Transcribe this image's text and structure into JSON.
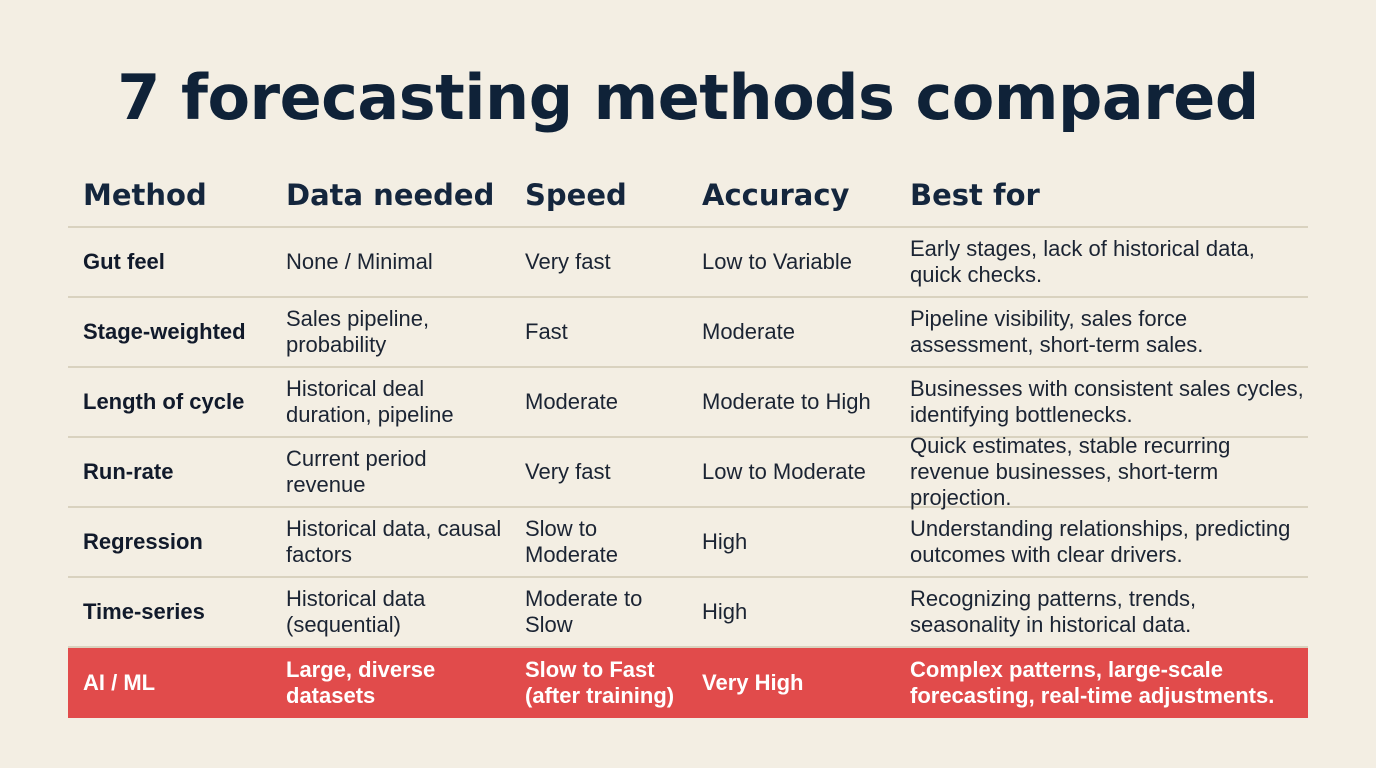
{
  "title": "7 forecasting methods compared",
  "columns": [
    "Method",
    "Data needed",
    "Speed",
    "Accuracy",
    "Best for"
  ],
  "rows": [
    {
      "method": "Gut feel",
      "data_needed": "None / Minimal",
      "speed": "Very fast",
      "accuracy": "Low to Variable",
      "best_for": "Early stages, lack of historical data, quick checks."
    },
    {
      "method": "Stage-weighted",
      "data_needed": "Sales pipeline, probability",
      "speed": "Fast",
      "accuracy": "Moderate",
      "best_for": "Pipeline visibility, sales force assessment, short-term sales."
    },
    {
      "method": "Length of cycle",
      "data_needed": "Historical deal duration, pipeline",
      "speed": "Moderate",
      "accuracy": "Moderate to High",
      "best_for": "Businesses with consistent sales cycles, identifying bottlenecks."
    },
    {
      "method": "Run-rate",
      "data_needed": "Current period revenue",
      "speed": "Very fast",
      "accuracy": "Low to Moderate",
      "best_for": "Quick estimates, stable recurring revenue businesses, short-term projection."
    },
    {
      "method": "Regression",
      "data_needed": "Historical data, causal factors",
      "speed": "Slow to Moderate",
      "accuracy": "High",
      "best_for": "Understanding relationships, predicting outcomes with clear drivers."
    },
    {
      "method": "Time-series",
      "data_needed": "Historical data (sequential)",
      "speed": "Moderate to Slow",
      "accuracy": "High",
      "best_for": "Recognizing patterns, trends, seasonality in historical data."
    },
    {
      "method": "AI / ML",
      "data_needed": "Large, diverse datasets",
      "speed": "Slow to Fast (after training)",
      "accuracy": "Very High",
      "best_for": "Complex patterns, large-scale forecasting, real-time adjustments."
    }
  ],
  "highlight_row": "AI / ML",
  "colors": {
    "background": "#f3eee3",
    "title": "#0f2238",
    "highlight_row": "#e14b4b",
    "divider": "#d9d2bf"
  }
}
